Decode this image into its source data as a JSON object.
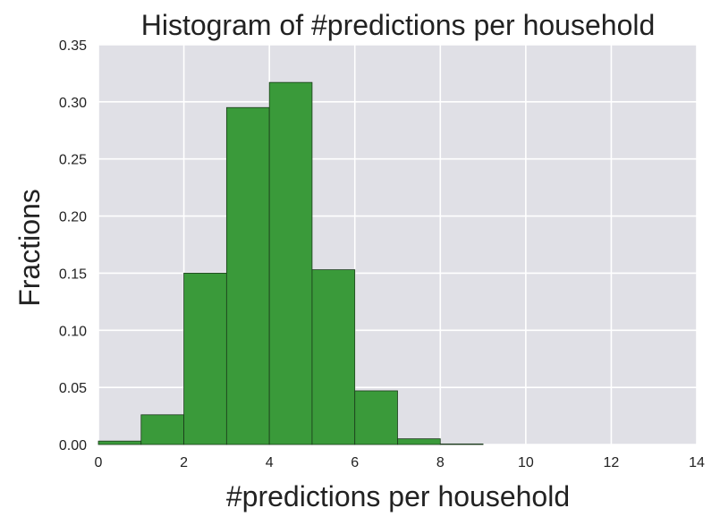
{
  "chart_data": {
    "type": "bar",
    "title": "Histogram of #predictions per household",
    "xlabel": "#predictions per household",
    "ylabel": "Fractions",
    "xlim": [
      0,
      14
    ],
    "ylim": [
      0,
      0.35
    ],
    "x_ticks": [
      "0",
      "2",
      "4",
      "6",
      "8",
      "10",
      "12",
      "14"
    ],
    "y_ticks": [
      "0.00",
      "0.05",
      "0.10",
      "0.15",
      "0.20",
      "0.25",
      "0.30",
      "0.35"
    ],
    "bins": [
      {
        "start": 0,
        "end": 1,
        "value": 0.003
      },
      {
        "start": 1,
        "end": 2,
        "value": 0.026
      },
      {
        "start": 2,
        "end": 3,
        "value": 0.15
      },
      {
        "start": 3,
        "end": 4,
        "value": 0.295
      },
      {
        "start": 4,
        "end": 5,
        "value": 0.317
      },
      {
        "start": 5,
        "end": 6,
        "value": 0.153
      },
      {
        "start": 6,
        "end": 7,
        "value": 0.047
      },
      {
        "start": 7,
        "end": 8,
        "value": 0.005
      },
      {
        "start": 8,
        "end": 9,
        "value": 0.0005
      }
    ],
    "grid": true,
    "bar_color": "#3a9a3a",
    "background_color": "#e0e0e6"
  }
}
